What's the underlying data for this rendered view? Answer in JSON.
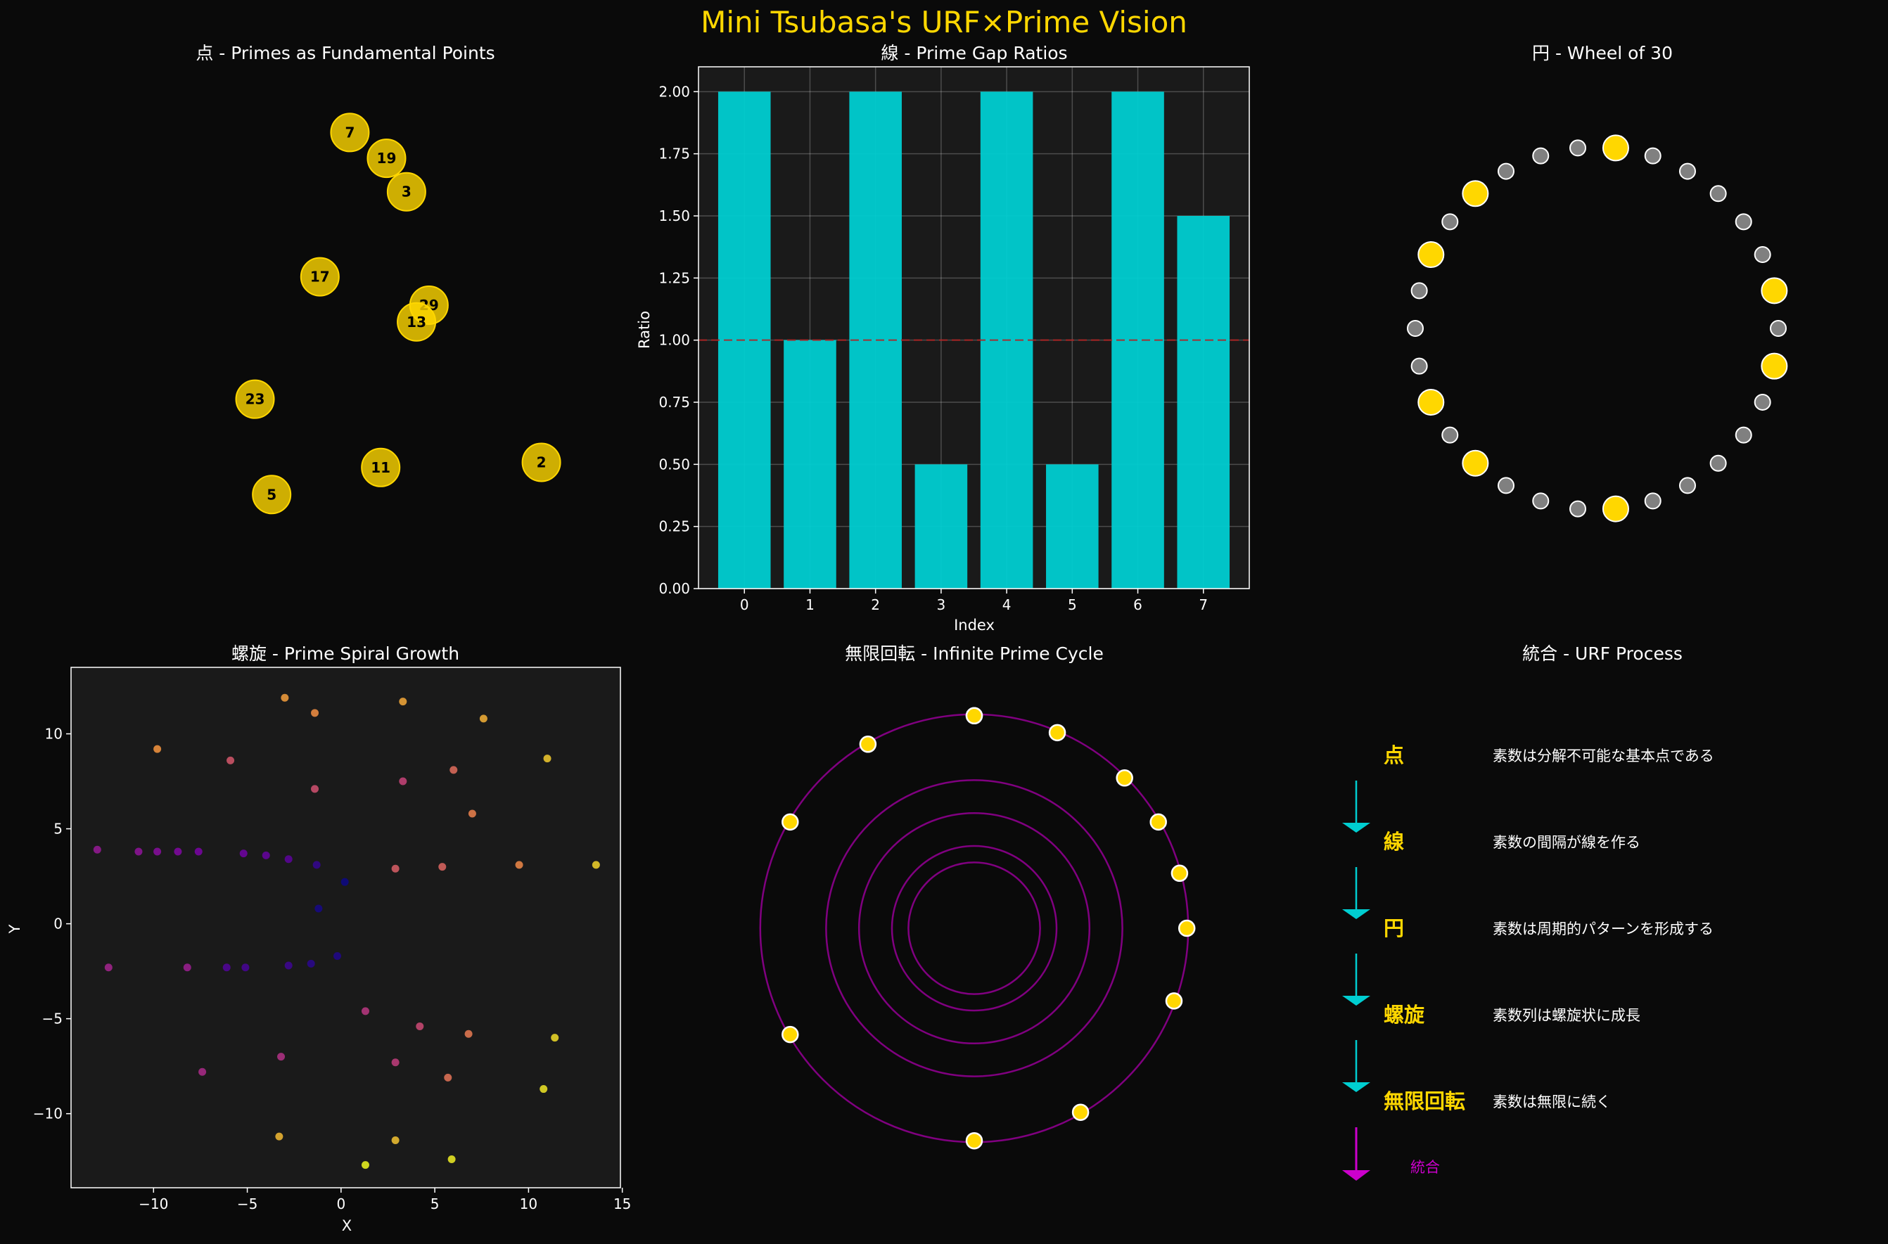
{
  "suptitle": "Mini Tsubasa's URF×Prime Vision",
  "colors": {
    "background": "#0a0a0a",
    "axes_bg": "#1a1a1a",
    "gold": "#ffd700",
    "cyan": "#00ced1",
    "magenta": "#c71585",
    "purple": "#800080",
    "title_gold": "#ffd700"
  },
  "chart_data": [
    {
      "type": "scatter",
      "title": "点 - Primes as Fundamental Points",
      "axes_visible": false,
      "xlim": [
        -3,
        3.6
      ],
      "ylim": [
        -2.1,
        1.95
      ],
      "points": [
        {
          "label": "7",
          "x": 0.35,
          "y": 1.44
        },
        {
          "label": "19",
          "x": 0.79,
          "y": 1.24
        },
        {
          "label": "3",
          "x": 1.03,
          "y": 0.98
        },
        {
          "label": "17",
          "x": -0.01,
          "y": 0.32
        },
        {
          "label": "29",
          "x": 1.3,
          "y": 0.1
        },
        {
          "label": "13",
          "x": 1.15,
          "y": -0.03
        },
        {
          "label": "23",
          "x": -0.79,
          "y": -0.63
        },
        {
          "label": "11",
          "x": 0.72,
          "y": -1.16
        },
        {
          "label": "2",
          "x": 2.65,
          "y": -1.12
        },
        {
          "label": "5",
          "x": -0.59,
          "y": -1.37
        }
      ]
    },
    {
      "type": "bar",
      "title": "線 - Prime Gap Ratios",
      "xlabel": "Index",
      "ylabel": "Ratio",
      "categories": [
        "0",
        "1",
        "2",
        "3",
        "4",
        "5",
        "6",
        "7"
      ],
      "values": [
        2.0,
        1.0,
        2.0,
        0.5,
        2.0,
        0.5,
        2.0,
        1.5
      ],
      "ylim": [
        0,
        2.1
      ],
      "yticks": [
        "0.00",
        "0.25",
        "0.50",
        "0.75",
        "1.00",
        "1.25",
        "1.50",
        "1.75",
        "2.00"
      ],
      "reference_line": 1.0,
      "grid": true
    },
    {
      "type": "scatter",
      "title": "円 - Wheel of 30",
      "axes_visible": false,
      "n_positions": 30,
      "highlighted": [
        1,
        7,
        11,
        13,
        17,
        19,
        23,
        29
      ]
    },
    {
      "type": "scatter",
      "title": "螺旋 - Prime Spiral Growth",
      "xlabel": "X",
      "ylabel": "Y",
      "xlim": [
        -14.4,
        14.9
      ],
      "ylim": [
        -13.9,
        13.5
      ],
      "xticks": [
        "−10",
        "−5",
        "0",
        "5",
        "10",
        "15"
      ],
      "yticks": [
        "−10",
        "−5",
        "0",
        "5",
        "10"
      ],
      "points": [
        [
          0.2,
          2.2
        ],
        [
          -1.2,
          0.8
        ],
        [
          -0.2,
          -1.7
        ],
        [
          -1.6,
          -2.1
        ],
        [
          -1.3,
          3.1
        ],
        [
          -2.8,
          -2.2
        ],
        [
          -5.1,
          -2.3
        ],
        [
          -6.1,
          -2.3
        ],
        [
          -2.8,
          3.4
        ],
        [
          -4.0,
          3.6
        ],
        [
          -5.2,
          3.7
        ],
        [
          -7.6,
          3.8
        ],
        [
          -8.7,
          3.8
        ],
        [
          -9.8,
          3.8
        ],
        [
          -10.8,
          3.8
        ],
        [
          -13.0,
          3.9
        ],
        [
          -8.2,
          -2.3
        ],
        [
          -12.4,
          -2.3
        ],
        [
          -7.4,
          -7.8
        ],
        [
          -3.2,
          -7.0
        ],
        [
          1.3,
          -4.6
        ],
        [
          2.9,
          -7.3
        ],
        [
          3.3,
          7.5
        ],
        [
          4.2,
          -5.4
        ],
        [
          -1.4,
          7.1
        ],
        [
          -5.9,
          8.6
        ],
        [
          2.9,
          2.9
        ],
        [
          5.4,
          3.0
        ],
        [
          6.0,
          8.1
        ],
        [
          5.7,
          -8.1
        ],
        [
          6.8,
          -5.8
        ],
        [
          7.0,
          5.8
        ],
        [
          9.5,
          3.1
        ],
        [
          -1.4,
          11.1
        ],
        [
          -9.8,
          9.2
        ],
        [
          -3.0,
          11.9
        ],
        [
          3.3,
          11.7
        ],
        [
          7.6,
          10.8
        ],
        [
          -3.3,
          -11.2
        ],
        [
          2.9,
          -11.4
        ],
        [
          11.0,
          8.7
        ],
        [
          13.6,
          3.1
        ],
        [
          11.4,
          -6.0
        ],
        [
          10.8,
          -8.7
        ],
        [
          5.9,
          -12.4
        ],
        [
          1.3,
          -12.7
        ]
      ]
    },
    {
      "type": "scatter",
      "title": "無限回転 - Infinite Prime Cycle",
      "axes_visible": false,
      "rings": [
        2,
        3,
        5,
        7,
        11
      ],
      "points": [
        [
          90,
          0
        ],
        [
          67,
          20
        ],
        [
          45,
          90
        ],
        [
          30,
          110
        ],
        [
          15,
          130
        ],
        [
          0,
          150
        ],
        [
          -20,
          200
        ],
        [
          -60,
          260
        ],
        [
          -90,
          300
        ],
        [
          -150,
          330
        ],
        [
          -210,
          360
        ],
        [
          -240,
          400
        ],
        [
          -270,
          440
        ]
      ]
    }
  ],
  "urf_panel": {
    "title": "統合 - URF Process",
    "stages": [
      {
        "symbol": "点",
        "desc": "素数は分解不可能な基本点である"
      },
      {
        "symbol": "線",
        "desc": "素数の間隔が線を作る"
      },
      {
        "symbol": "円",
        "desc": "素数は周期的パターンを形成する"
      },
      {
        "symbol": "螺旋",
        "desc": "素数列は螺旋状に成長"
      },
      {
        "symbol": "無限回転",
        "desc": "素数は無限に続く"
      }
    ],
    "final_label": "統合"
  }
}
